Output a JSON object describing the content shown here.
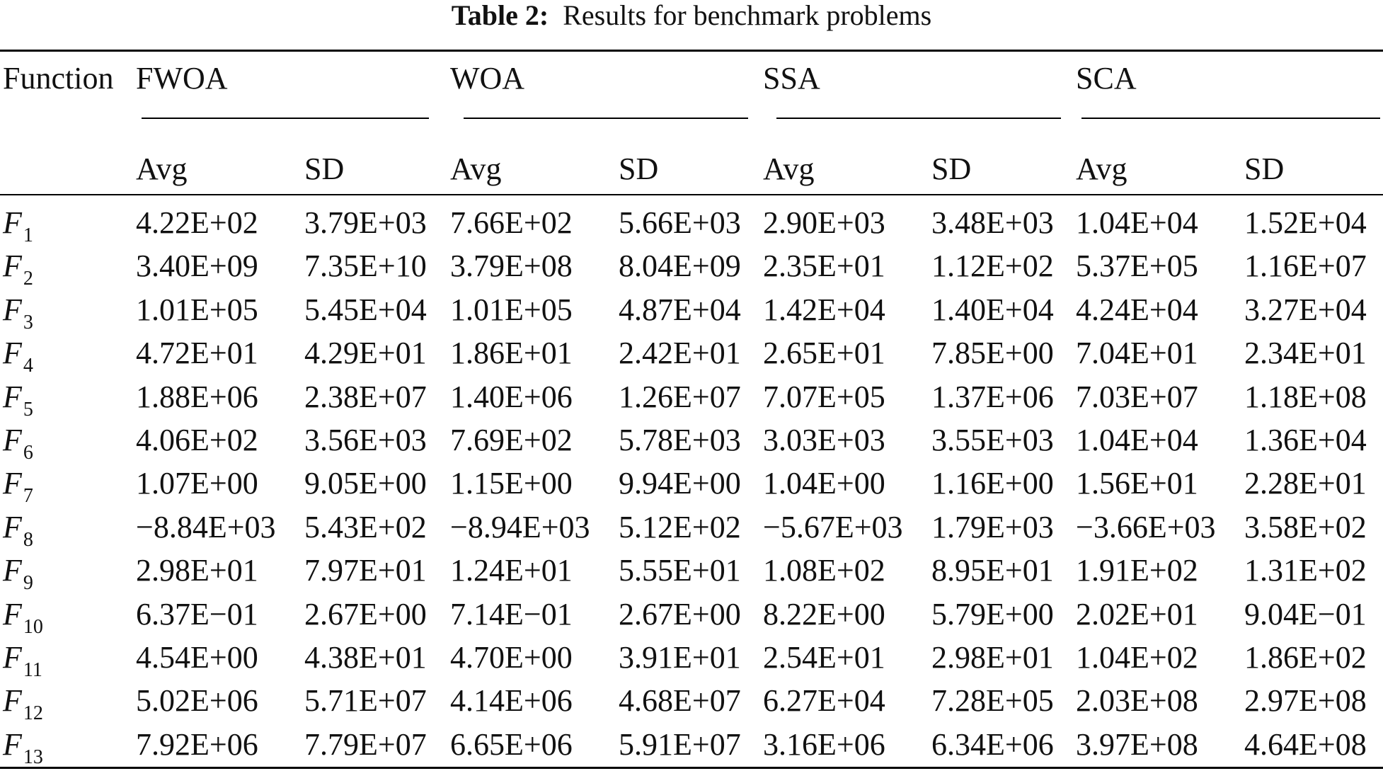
{
  "caption": {
    "label": "Table 2:",
    "text": "Results for benchmark problems"
  },
  "header": {
    "function_label": "Function",
    "groups": [
      "FWOA",
      "WOA",
      "SSA",
      "SCA"
    ],
    "subheaders": [
      "Avg",
      "SD",
      "Avg",
      "SD",
      "Avg",
      "SD",
      "Avg",
      "SD"
    ]
  },
  "rows": [
    {
      "f": "F",
      "sub": "1",
      "values": [
        "4.22E+02",
        "3.79E+03",
        "7.66E+02",
        "5.66E+03",
        "2.90E+03",
        "3.48E+03",
        "1.04E+04",
        "1.52E+04"
      ]
    },
    {
      "f": "F",
      "sub": "2",
      "values": [
        "3.40E+09",
        "7.35E+10",
        "3.79E+08",
        "8.04E+09",
        "2.35E+01",
        "1.12E+02",
        "5.37E+05",
        "1.16E+07"
      ]
    },
    {
      "f": "F",
      "sub": "3",
      "values": [
        "1.01E+05",
        "5.45E+04",
        "1.01E+05",
        "4.87E+04",
        "1.42E+04",
        "1.40E+04",
        "4.24E+04",
        "3.27E+04"
      ]
    },
    {
      "f": "F",
      "sub": "4",
      "values": [
        "4.72E+01",
        "4.29E+01",
        "1.86E+01",
        "2.42E+01",
        "2.65E+01",
        "7.85E+00",
        "7.04E+01",
        "2.34E+01"
      ]
    },
    {
      "f": "F",
      "sub": "5",
      "values": [
        "1.88E+06",
        "2.38E+07",
        "1.40E+06",
        "1.26E+07",
        "7.07E+05",
        "1.37E+06",
        "7.03E+07",
        "1.18E+08"
      ]
    },
    {
      "f": "F",
      "sub": "6",
      "values": [
        "4.06E+02",
        "3.56E+03",
        "7.69E+02",
        "5.78E+03",
        "3.03E+03",
        "3.55E+03",
        "1.04E+04",
        "1.36E+04"
      ]
    },
    {
      "f": "F",
      "sub": "7",
      "values": [
        "1.07E+00",
        "9.05E+00",
        "1.15E+00",
        "9.94E+00",
        "1.04E+00",
        "1.16E+00",
        "1.56E+01",
        "2.28E+01"
      ]
    },
    {
      "f": "F",
      "sub": "8",
      "values": [
        "−8.84E+03",
        "5.43E+02",
        "−8.94E+03",
        "5.12E+02",
        "−5.67E+03",
        "1.79E+03",
        "−3.66E+03",
        "3.58E+02"
      ]
    },
    {
      "f": "F",
      "sub": "9",
      "values": [
        "2.98E+01",
        "7.97E+01",
        "1.24E+01",
        "5.55E+01",
        "1.08E+02",
        "8.95E+01",
        "1.91E+02",
        "1.31E+02"
      ]
    },
    {
      "f": "F",
      "sub": "10",
      "values": [
        "6.37E−01",
        "2.67E+00",
        "7.14E−01",
        "2.67E+00",
        "8.22E+00",
        "5.79E+00",
        "2.02E+01",
        "9.04E−01"
      ]
    },
    {
      "f": "F",
      "sub": "11",
      "values": [
        "4.54E+00",
        "4.38E+01",
        "4.70E+00",
        "3.91E+01",
        "2.54E+01",
        "2.98E+01",
        "1.04E+02",
        "1.86E+02"
      ]
    },
    {
      "f": "F",
      "sub": "12",
      "values": [
        "5.02E+06",
        "5.71E+07",
        "4.14E+06",
        "4.68E+07",
        "6.27E+04",
        "7.28E+05",
        "2.03E+08",
        "2.97E+08"
      ]
    },
    {
      "f": "F",
      "sub": "13",
      "values": [
        "7.92E+06",
        "7.79E+07",
        "6.65E+06",
        "5.91E+07",
        "3.16E+06",
        "6.34E+06",
        "3.97E+08",
        "4.64E+08"
      ]
    }
  ]
}
